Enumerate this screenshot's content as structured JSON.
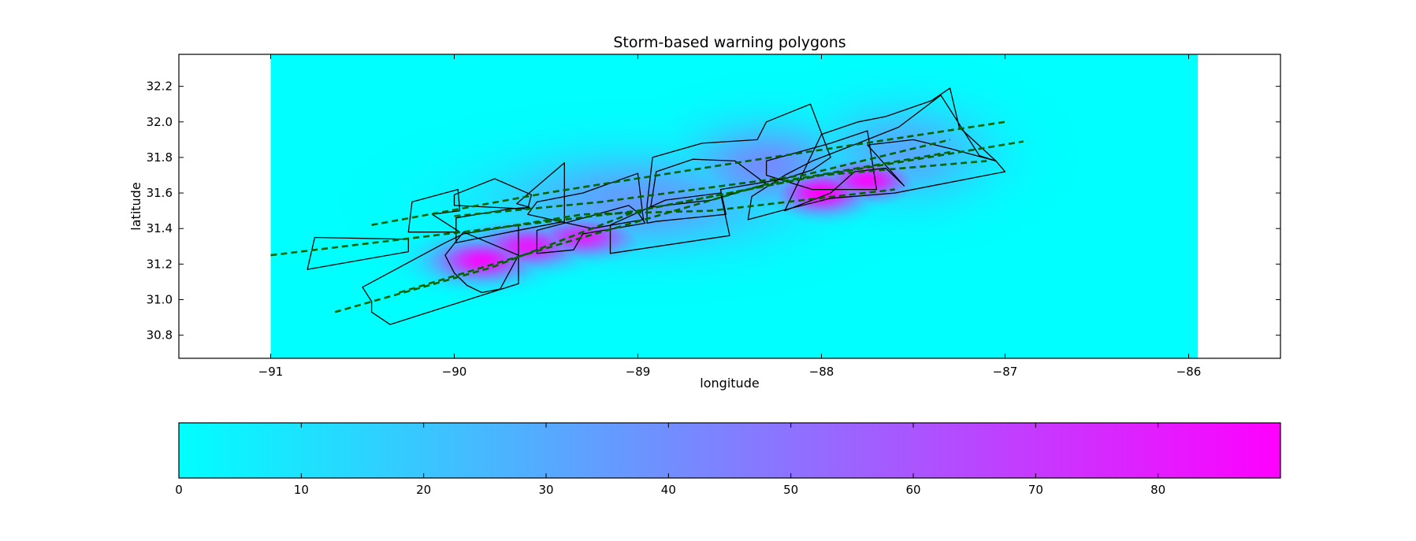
{
  "chart_data": [
    {
      "type": "heatmap",
      "title": "Storm-based warning polygons",
      "xlabel": "longitude",
      "ylabel": "latitude",
      "xlim": [
        -91.5,
        -85.5
      ],
      "ylim": [
        30.67,
        32.38
      ],
      "xticks": [
        -91,
        -90,
        -89,
        -88,
        -87,
        -86
      ],
      "yticks": [
        30.8,
        31.0,
        31.2,
        31.4,
        31.6,
        31.8,
        32.0,
        32.2
      ],
      "data_extent": {
        "lon": [
          -91.0,
          -85.95
        ],
        "lat": [
          30.67,
          32.38
        ]
      },
      "grid": false,
      "background_value": 0,
      "hotspots": [
        {
          "lon": -89.85,
          "lat": 31.22,
          "value": 85,
          "sx": 0.17,
          "sy": 0.075
        },
        {
          "lon": -89.6,
          "lat": 31.3,
          "value": 80,
          "sx": 0.18,
          "sy": 0.075
        },
        {
          "lon": -89.3,
          "lat": 31.35,
          "value": 75,
          "sx": 0.18,
          "sy": 0.07
        },
        {
          "lon": -88.0,
          "lat": 31.6,
          "value": 90,
          "sx": 0.15,
          "sy": 0.075
        },
        {
          "lon": -87.75,
          "lat": 31.67,
          "value": 85,
          "sx": 0.15,
          "sy": 0.07
        },
        {
          "lon": -88.3,
          "lat": 31.75,
          "value": 40,
          "sx": 0.28,
          "sy": 0.16
        },
        {
          "lon": -87.55,
          "lat": 31.82,
          "value": 30,
          "sx": 0.3,
          "sy": 0.18
        },
        {
          "lon": -89.0,
          "lat": 31.55,
          "value": 35,
          "sx": 0.5,
          "sy": 0.18
        }
      ],
      "warning_polygons": [
        [
          [
            -90.8,
            31.17
          ],
          [
            -90.76,
            31.35
          ],
          [
            -90.25,
            31.34
          ],
          [
            -90.25,
            31.27
          ]
        ],
        [
          [
            -90.45,
            30.93
          ],
          [
            -90.35,
            30.86
          ],
          [
            -89.65,
            31.09
          ],
          [
            -89.65,
            31.42
          ],
          [
            -89.95,
            31.37
          ],
          [
            -90.05,
            31.32
          ],
          [
            -90.5,
            31.07
          ],
          [
            -90.45,
            30.99
          ]
        ],
        [
          [
            -90.25,
            31.38
          ],
          [
            -90.23,
            31.55
          ],
          [
            -89.98,
            31.62
          ],
          [
            -89.97,
            31.5
          ],
          [
            -90.12,
            31.48
          ],
          [
            -89.97,
            31.38
          ]
        ],
        [
          [
            -90.0,
            31.59
          ],
          [
            -90.0,
            31.53
          ],
          [
            -89.6,
            31.51
          ],
          [
            -89.58,
            31.59
          ],
          [
            -89.78,
            31.68
          ]
        ],
        [
          [
            -89.99,
            31.32
          ],
          [
            -89.99,
            31.46
          ],
          [
            -89.7,
            31.51
          ],
          [
            -89.59,
            31.52
          ],
          [
            -89.66,
            31.54
          ],
          [
            -89.4,
            31.77
          ],
          [
            -89.4,
            31.44
          ],
          [
            -89.7,
            31.38
          ]
        ],
        [
          [
            -89.55,
            31.26
          ],
          [
            -89.55,
            31.39
          ],
          [
            -89.4,
            31.43
          ],
          [
            -89.05,
            31.53
          ],
          [
            -89.0,
            31.49
          ],
          [
            -88.96,
            31.43
          ],
          [
            -89.3,
            31.37
          ],
          [
            -89.35,
            31.28
          ]
        ],
        [
          [
            -90.0,
            31.15
          ],
          [
            -89.93,
            31.08
          ],
          [
            -89.85,
            31.04
          ],
          [
            -89.75,
            31.06
          ],
          [
            -89.65,
            31.25
          ],
          [
            -89.95,
            31.38
          ],
          [
            -90.05,
            31.25
          ]
        ],
        [
          [
            -89.6,
            31.48
          ],
          [
            -89.55,
            31.55
          ],
          [
            -89.3,
            31.6
          ],
          [
            -89.0,
            31.71
          ],
          [
            -88.97,
            31.45
          ],
          [
            -89.25,
            31.4
          ]
        ],
        [
          [
            -89.15,
            31.26
          ],
          [
            -89.15,
            31.42
          ],
          [
            -88.85,
            31.56
          ],
          [
            -88.55,
            31.6
          ],
          [
            -88.5,
            31.36
          ]
        ],
        [
          [
            -88.95,
            31.43
          ],
          [
            -88.95,
            31.53
          ],
          [
            -88.92,
            31.8
          ],
          [
            -88.65,
            31.88
          ],
          [
            -88.35,
            31.9
          ],
          [
            -88.3,
            32.0
          ],
          [
            -88.06,
            32.1
          ],
          [
            -87.95,
            31.8
          ],
          [
            -88.05,
            31.73
          ],
          [
            -88.2,
            31.68
          ],
          [
            -88.55,
            31.62
          ],
          [
            -88.52,
            31.48
          ],
          [
            -88.9,
            31.44
          ]
        ],
        [
          [
            -88.93,
            31.52
          ],
          [
            -88.9,
            31.72
          ],
          [
            -88.7,
            31.79
          ],
          [
            -88.47,
            31.78
          ],
          [
            -88.3,
            31.65
          ],
          [
            -88.6,
            31.56
          ]
        ],
        [
          [
            -88.3,
            31.78
          ],
          [
            -88.3,
            31.7
          ],
          [
            -88.05,
            31.62
          ],
          [
            -87.7,
            31.62
          ],
          [
            -87.75,
            31.95
          ],
          [
            -87.95,
            31.88
          ]
        ],
        [
          [
            -88.2,
            31.5
          ],
          [
            -87.95,
            31.6
          ],
          [
            -87.82,
            31.72
          ],
          [
            -87.65,
            31.74
          ],
          [
            -87.55,
            31.64
          ],
          [
            -87.75,
            31.87
          ],
          [
            -87.5,
            31.9
          ],
          [
            -87.3,
            31.85
          ],
          [
            -87.05,
            31.78
          ],
          [
            -87.25,
            31.97
          ],
          [
            -87.3,
            32.19
          ],
          [
            -87.4,
            32.12
          ],
          [
            -87.65,
            32.03
          ],
          [
            -87.8,
            32.0
          ],
          [
            -88.0,
            31.93
          ]
        ],
        [
          [
            -88.4,
            31.45
          ],
          [
            -88.38,
            31.58
          ],
          [
            -88.2,
            31.7
          ],
          [
            -88.05,
            31.78
          ],
          [
            -87.8,
            31.88
          ],
          [
            -87.58,
            31.97
          ],
          [
            -87.35,
            32.15
          ],
          [
            -87.14,
            31.81
          ],
          [
            -87.05,
            31.78
          ],
          [
            -87.0,
            31.72
          ],
          [
            -87.35,
            31.65
          ],
          [
            -87.6,
            31.6
          ],
          [
            -87.95,
            31.57
          ],
          [
            -88.22,
            31.5
          ]
        ]
      ],
      "track_lines": [
        [
          [
            -91.0,
            31.25
          ],
          [
            -89.0,
            31.5
          ],
          [
            -88.0,
            31.7
          ],
          [
            -87.1,
            31.78
          ]
        ],
        [
          [
            -90.45,
            31.42
          ],
          [
            -89.5,
            31.6
          ],
          [
            -88.4,
            31.78
          ],
          [
            -87.0,
            32.0
          ]
        ],
        [
          [
            -90.65,
            30.93
          ],
          [
            -89.8,
            31.18
          ],
          [
            -89.0,
            31.5
          ],
          [
            -88.0,
            31.7
          ],
          [
            -86.9,
            31.89
          ]
        ],
        [
          [
            -90.3,
            31.04
          ],
          [
            -89.4,
            31.32
          ],
          [
            -88.3,
            31.65
          ],
          [
            -87.3,
            31.83
          ]
        ],
        [
          [
            -90.0,
            31.47
          ],
          [
            -89.2,
            31.55
          ],
          [
            -88.1,
            31.7
          ],
          [
            -87.3,
            31.9
          ]
        ],
        [
          [
            -89.9,
            31.38
          ],
          [
            -89.3,
            31.48
          ],
          [
            -88.6,
            31.5
          ],
          [
            -87.6,
            31.62
          ]
        ]
      ],
      "colormap": [
        "#00ffff",
        "#ff00ff"
      ]
    },
    {
      "type": "colorbar",
      "range": [
        0,
        90
      ],
      "ticks": [
        0,
        10,
        20,
        30,
        40,
        50,
        60,
        70,
        80
      ],
      "colormap": [
        "#00ffff",
        "#ff00ff"
      ]
    }
  ]
}
